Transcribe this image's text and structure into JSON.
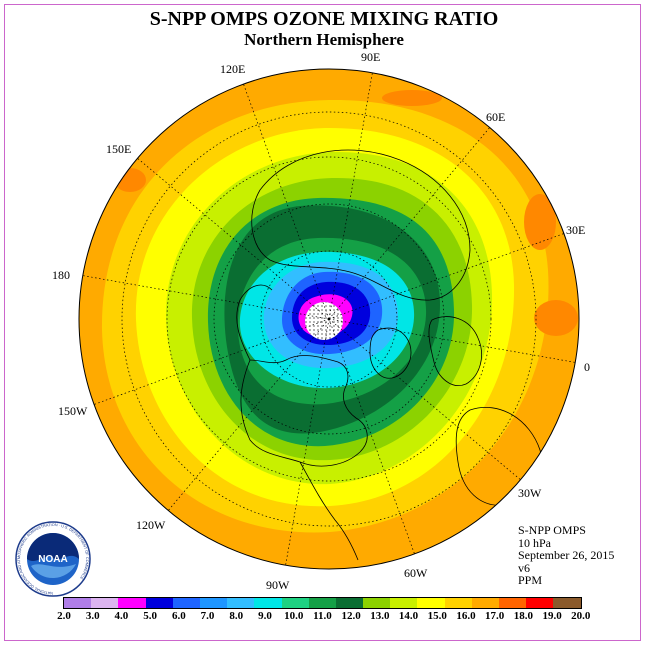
{
  "title": "S-NPP OMPS OZONE MIXING RATIO",
  "subtitle": "Northern Hemisphere",
  "longitude_labels": {
    "e90": "90E",
    "e60": "60E",
    "e30": "30E",
    "zero": "0",
    "w30": "30W",
    "w60": "60W",
    "w90": "90W",
    "w120": "120W",
    "w150": "150W",
    "dateline": "180",
    "e150": "150E",
    "e120": "120E"
  },
  "info": {
    "instrument": "S-NPP OMPS",
    "level": "10 hPa",
    "date": "September 26, 2015",
    "version": "v6",
    "units": "PPM"
  },
  "logo": {
    "text": "NOAA",
    "ring_text": "NATIONAL OCEANIC AND ATMOSPHERIC ADMINISTRATION · U.S. DEPARTMENT OF COMMERCE"
  },
  "colorbar": {
    "ticks": [
      "2.0",
      "3.0",
      "4.0",
      "5.0",
      "6.0",
      "7.0",
      "8.0",
      "9.0",
      "10.0",
      "11.0",
      "12.0",
      "13.0",
      "14.0",
      "15.0",
      "16.0",
      "17.0",
      "18.0",
      "19.0",
      "20.0"
    ],
    "colors": [
      "#b07ee8",
      "#dcb4f0",
      "#ff00ff",
      "#0000dd",
      "#1e64ff",
      "#1e96ff",
      "#32beff",
      "#00e6e6",
      "#1ed282",
      "#14a046",
      "#0a6e32",
      "#8cd200",
      "#c8f000",
      "#ffff00",
      "#ffd200",
      "#ffaa00",
      "#ff6400",
      "#ff0000",
      "#8b5a2b"
    ]
  },
  "map_colors": {
    "orange": "#ffaa00",
    "light_orange": "#ffd200",
    "yellow": "#ffff00",
    "yellow_green": "#c8f000",
    "lime": "#8cd200",
    "green": "#14a046",
    "dark_green": "#0a6e32",
    "cyan": "#00e6e6",
    "light_blue": "#32beff",
    "blue": "#1e64ff",
    "navy": "#0000dd",
    "magenta": "#ff00ff",
    "hot_orange": "#ff8800",
    "missing": "#ffffff"
  }
}
